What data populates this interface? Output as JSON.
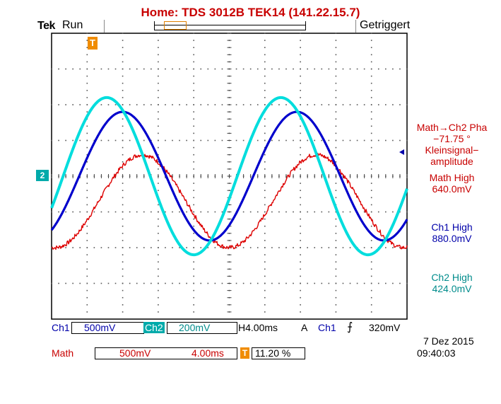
{
  "header": {
    "title": "Home:  TDS 3012B  TEK14  (141.22.15.7)",
    "brand": "Tek",
    "acq_state": "Run",
    "trigger_status": "Getriggert",
    "trigger_marker": "T"
  },
  "markers": {
    "ch2": "2"
  },
  "measurements": {
    "math_ch2_phase_label": "Math→Ch2 Pha",
    "math_ch2_phase_value": "−71.75 °",
    "kleinsignal_line1": "Kleinsignal−",
    "kleinsignal_line2": "amplitude",
    "math_high_label": "Math High",
    "math_high_value": "640.0mV",
    "ch1_high_label": "Ch1 High",
    "ch1_high_value": "880.0mV",
    "ch2_high_label": "Ch2 High",
    "ch2_high_value": "424.0mV"
  },
  "status_bar": {
    "ch1_label": "Ch1",
    "ch1_scale": "500mV",
    "ch2_label": "Ch2",
    "ch2_scale": "200mV",
    "horizontal": "H4.00ms",
    "acq_mode": "A",
    "trigger_source": "Ch1",
    "trigger_slope_icon": "rising-edge-icon",
    "trigger_level": "320mV",
    "math_label": "Math",
    "math_scale": "500mV",
    "math_time": "4.00ms",
    "trigger_position": "11.20 %",
    "date": "7 Dez  2015",
    "time": "09:40:03"
  },
  "colors": {
    "ch1": "#0000cc",
    "ch2": "#00dddd",
    "math": "#dd0000",
    "title": "#c80000",
    "trigger": "#f08c00"
  },
  "waveforms": {
    "units": "divisions",
    "time_divisions": 10,
    "vertical_divisions": 8,
    "period_div": 4.9,
    "ch1": {
      "amplitude_div": 1.8,
      "peak_time_div": 2.0
    },
    "ch2": {
      "amplitude_div": 2.2,
      "peak_time_div": 1.55
    },
    "math": {
      "amplitude_div": 1.3,
      "peak_time_div": 2.55,
      "offset_div": -0.7
    }
  }
}
